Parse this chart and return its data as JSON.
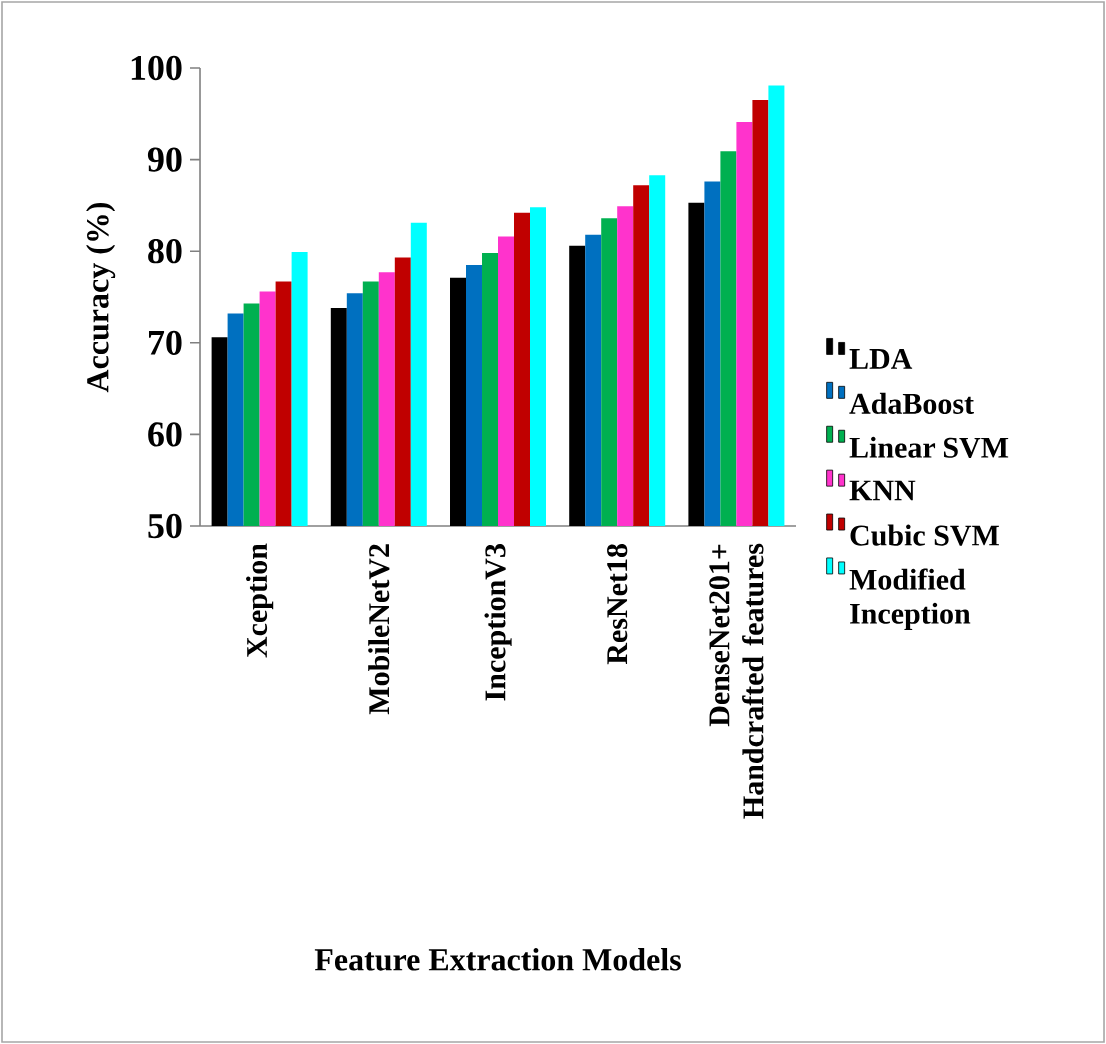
{
  "chart_data": {
    "type": "bar",
    "xlabel": "Feature Extraction Models",
    "ylabel": "Accuracy (%)",
    "categories": [
      "Xception",
      "MobileNetV2",
      "InceptionV3",
      "ResNet18",
      "DenseNet201+ Handcrafted features"
    ],
    "series": [
      {
        "name": "LDA",
        "color": "#000000",
        "values": [
          70.6,
          73.8,
          77.1,
          80.6,
          85.3
        ]
      },
      {
        "name": "AdaBoost",
        "color": "#0070c0",
        "values": [
          73.2,
          75.4,
          78.5,
          81.8,
          87.6
        ]
      },
      {
        "name": "Linear SVM",
        "color": "#00b050",
        "values": [
          74.3,
          76.7,
          79.8,
          83.6,
          90.9
        ]
      },
      {
        "name": "KNN",
        "color": "#ff33cc",
        "values": [
          75.6,
          77.7,
          81.6,
          84.9,
          94.1
        ]
      },
      {
        "name": "Cubic SVM",
        "color": "#c00000",
        "values": [
          76.7,
          79.3,
          84.2,
          87.2,
          96.5
        ]
      },
      {
        "name": "Modified Inception",
        "color": "#00ffff",
        "values": [
          79.9,
          83.1,
          84.8,
          88.3,
          98.1
        ]
      }
    ],
    "ylim": [
      50,
      100
    ],
    "yticks": [
      50,
      60,
      70,
      80,
      90,
      100
    ],
    "grid": false,
    "legend": "right"
  }
}
